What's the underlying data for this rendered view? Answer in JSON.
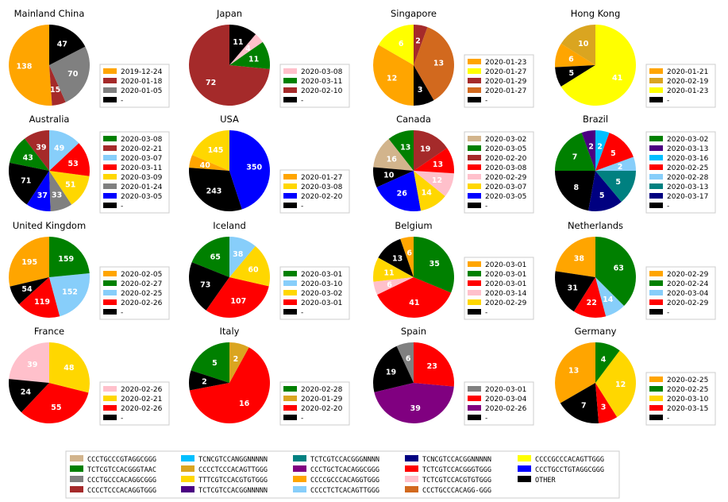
{
  "chart_data": [
    {
      "type": "pie",
      "title": "Mainland China",
      "slices": [
        {
          "value": 138,
          "color": "#FFA500",
          "legend": "2019-12-24"
        },
        {
          "value": 15,
          "color": "#A52A2A",
          "legend": "2020-01-18"
        },
        {
          "value": 70,
          "color": "#808080",
          "legend": "2020-01-05"
        },
        {
          "value": 47,
          "color": "#000000",
          "legend": "-"
        }
      ]
    },
    {
      "type": "pie",
      "title": "Japan",
      "slices": [
        {
          "value": 72,
          "color": "#A52A2A",
          "legend": "2020-02-10"
        },
        {
          "value": 11,
          "color": "#008000",
          "legend": "2020-03-11"
        },
        {
          "value": 4,
          "color": "#FFC0CB",
          "legend": "2020-03-08"
        },
        {
          "value": 11,
          "color": "#000000",
          "legend": "-"
        }
      ],
      "legend_order": [
        2,
        1,
        0,
        3
      ]
    },
    {
      "type": "pie",
      "title": "Singapore",
      "slices": [
        {
          "value": 6,
          "color": "#FFFF00",
          "legend": "2020-01-27"
        },
        {
          "value": 12,
          "color": "#FFA500",
          "legend": "2020-01-23"
        },
        {
          "value": 3,
          "color": "#000000",
          "legend": "-"
        },
        {
          "value": 13,
          "color": "#D2691E",
          "legend": "2020-01-27"
        },
        {
          "value": 2,
          "color": "#A52A2A",
          "legend": "2020-01-29"
        }
      ],
      "legend_order": [
        1,
        0,
        4,
        3,
        2
      ]
    },
    {
      "type": "pie",
      "title": "Hong Kong",
      "slices": [
        {
          "value": 10,
          "color": "#DAA520",
          "legend": "2020-02-19"
        },
        {
          "value": 6,
          "color": "#FFA500",
          "legend": "2020-01-21"
        },
        {
          "value": 5,
          "color": "#000000",
          "legend": "-"
        },
        {
          "value": 41,
          "color": "#FFFF00",
          "legend": "2020-01-23"
        }
      ],
      "legend_order": [
        1,
        0,
        3,
        2
      ]
    },
    {
      "type": "pie",
      "title": "Australia",
      "slices": [
        {
          "value": 39,
          "color": "#A52A2A",
          "legend": "2020-02-21"
        },
        {
          "value": 43,
          "color": "#008000",
          "legend": "2020-03-08"
        },
        {
          "value": 71,
          "color": "#000000",
          "legend": "-"
        },
        {
          "value": 37,
          "color": "#0000FF",
          "legend": "2020-03-05"
        },
        {
          "value": 33,
          "color": "#808080",
          "legend": "2020-01-24"
        },
        {
          "value": 51,
          "color": "#FFD700",
          "legend": "2020-03-09"
        },
        {
          "value": 53,
          "color": "#FF0000",
          "legend": "2020-03-11"
        },
        {
          "value": 49,
          "color": "#87CEFA",
          "legend": "2020-03-07"
        }
      ],
      "legend_order": [
        1,
        0,
        7,
        6,
        5,
        4,
        3,
        2
      ]
    },
    {
      "type": "pie",
      "title": "USA",
      "slices": [
        {
          "value": 145,
          "color": "#FFD700",
          "legend": "2020-03-08"
        },
        {
          "value": 40,
          "color": "#FFA500",
          "legend": "2020-01-27"
        },
        {
          "value": 243,
          "color": "#000000",
          "legend": "-"
        },
        {
          "value": 350,
          "color": "#0000FF",
          "legend": "2020-02-20"
        }
      ],
      "legend_order": [
        1,
        0,
        3,
        2
      ]
    },
    {
      "type": "pie",
      "title": "Canada",
      "slices": [
        {
          "value": 13,
          "color": "#008000",
          "legend": "2020-03-05"
        },
        {
          "value": 16,
          "color": "#D2B48C",
          "legend": "2020-03-02"
        },
        {
          "value": 10,
          "color": "#000000",
          "legend": "-"
        },
        {
          "value": 26,
          "color": "#0000FF",
          "legend": "2020-03-05"
        },
        {
          "value": 14,
          "color": "#FFD700",
          "legend": "2020-03-07"
        },
        {
          "value": 12,
          "color": "#FFC0CB",
          "legend": "2020-02-29"
        },
        {
          "value": 13,
          "color": "#FF0000",
          "legend": "2020-03-08"
        },
        {
          "value": 19,
          "color": "#A52A2A",
          "legend": "2020-02-20"
        }
      ],
      "legend_order": [
        1,
        0,
        7,
        6,
        5,
        4,
        3,
        2
      ]
    },
    {
      "type": "pie",
      "title": "Brazil",
      "slices": [
        {
          "value": 2,
          "color": "#4B0082",
          "legend": "2020-03-13"
        },
        {
          "value": 7,
          "color": "#008000",
          "legend": "2020-03-02"
        },
        {
          "value": 8,
          "color": "#000000",
          "legend": "-"
        },
        {
          "value": 5,
          "color": "#000080",
          "legend": "2020-03-17"
        },
        {
          "value": 5,
          "color": "#008080",
          "legend": "2020-03-13"
        },
        {
          "value": 2,
          "color": "#87CEFA",
          "legend": "2020-02-28"
        },
        {
          "value": 5,
          "color": "#FF0000",
          "legend": "2020-02-25"
        },
        {
          "value": 2,
          "color": "#00BFFF",
          "legend": "2020-03-16"
        }
      ],
      "legend_order": [
        1,
        0,
        7,
        6,
        5,
        4,
        3,
        2
      ]
    },
    {
      "type": "pie",
      "title": "United Kingdom",
      "slices": [
        {
          "value": 195,
          "color": "#FFA500",
          "legend": "2020-02-05"
        },
        {
          "value": 54,
          "color": "#000000",
          "legend": "-"
        },
        {
          "value": 119,
          "color": "#FF0000",
          "legend": "2020-02-26"
        },
        {
          "value": 152,
          "color": "#87CEFA",
          "legend": "2020-02-25"
        },
        {
          "value": 159,
          "color": "#008000",
          "legend": "2020-02-27"
        }
      ],
      "legend_order": [
        0,
        4,
        3,
        2,
        1
      ]
    },
    {
      "type": "pie",
      "title": "Iceland",
      "slices": [
        {
          "value": 65,
          "color": "#008000",
          "legend": "2020-03-01"
        },
        {
          "value": 73,
          "color": "#000000",
          "legend": "-"
        },
        {
          "value": 107,
          "color": "#FF0000",
          "legend": "2020-03-01"
        },
        {
          "value": 60,
          "color": "#FFD700",
          "legend": "2020-03-02"
        },
        {
          "value": 38,
          "color": "#87CEFA",
          "legend": "2020-03-10"
        }
      ],
      "legend_order": [
        0,
        4,
        3,
        2,
        1
      ]
    },
    {
      "type": "pie",
      "title": "Belgium",
      "slices": [
        {
          "value": 6,
          "color": "#FFA500",
          "legend": "2020-03-01"
        },
        {
          "value": 13,
          "color": "#000000",
          "legend": "-"
        },
        {
          "value": 11,
          "color": "#FFD700",
          "legend": "2020-02-29"
        },
        {
          "value": 6,
          "color": "#FFC0CB",
          "legend": "2020-03-14"
        },
        {
          "value": 41,
          "color": "#FF0000",
          "legend": "2020-03-01"
        },
        {
          "value": 35,
          "color": "#008000",
          "legend": "2020-03-01"
        }
      ],
      "legend_order": [
        0,
        5,
        4,
        3,
        2,
        1
      ]
    },
    {
      "type": "pie",
      "title": "Netherlands",
      "slices": [
        {
          "value": 38,
          "color": "#FFA500",
          "legend": "2020-02-29"
        },
        {
          "value": 31,
          "color": "#000000",
          "legend": "-"
        },
        {
          "value": 22,
          "color": "#FF0000",
          "legend": "2020-02-29"
        },
        {
          "value": 14,
          "color": "#87CEFA",
          "legend": "2020-03-04"
        },
        {
          "value": 63,
          "color": "#008000",
          "legend": "2020-02-24"
        }
      ],
      "legend_order": [
        0,
        4,
        3,
        2,
        1
      ]
    },
    {
      "type": "pie",
      "title": "France",
      "slices": [
        {
          "value": 39,
          "color": "#FFC0CB",
          "legend": "2020-02-26"
        },
        {
          "value": 24,
          "color": "#000000",
          "legend": "-"
        },
        {
          "value": 55,
          "color": "#FF0000",
          "legend": "2020-02-26"
        },
        {
          "value": 48,
          "color": "#FFD700",
          "legend": "2020-02-21"
        }
      ],
      "legend_order": [
        0,
        3,
        2,
        1
      ]
    },
    {
      "type": "pie",
      "title": "Italy",
      "slices": [
        {
          "value": 5,
          "color": "#008000",
          "legend": "2020-02-28"
        },
        {
          "value": 2,
          "color": "#000000",
          "legend": "-"
        },
        {
          "value": 16,
          "color": "#FF0000",
          "legend": "2020-02-20"
        },
        {
          "value": 2,
          "color": "#DAA520",
          "legend": "2020-01-29"
        }
      ],
      "legend_order": [
        0,
        3,
        2,
        1
      ]
    },
    {
      "type": "pie",
      "title": "Spain",
      "slices": [
        {
          "value": 6,
          "color": "#808080",
          "legend": "2020-03-01"
        },
        {
          "value": 19,
          "color": "#000000",
          "legend": "-"
        },
        {
          "value": 39,
          "color": "#800080",
          "legend": "2020-02-26"
        },
        {
          "value": 23,
          "color": "#FF0000",
          "legend": "2020-03-04"
        }
      ],
      "legend_order": [
        0,
        3,
        2,
        1
      ]
    },
    {
      "type": "pie",
      "title": "Germany",
      "slices": [
        {
          "value": 13,
          "color": "#FFA500",
          "legend": "2020-02-25"
        },
        {
          "value": 7,
          "color": "#000000",
          "legend": "-"
        },
        {
          "value": 3,
          "color": "#FF0000",
          "legend": "2020-03-15"
        },
        {
          "value": 12,
          "color": "#FFD700",
          "legend": "2020-03-10"
        },
        {
          "value": 4,
          "color": "#008000",
          "legend": "2020-02-25"
        }
      ],
      "legend_order": [
        0,
        4,
        3,
        2,
        1
      ]
    }
  ],
  "sequence_key": [
    [
      {
        "color": "#D2B48C",
        "label": "CCCTGCCCGTAGGCGGG"
      },
      {
        "color": "#008000",
        "label": "TCTCGTCCACGGGTAAC"
      },
      {
        "color": "#808080",
        "label": "CCCTGCCCACAGGCGGG"
      },
      {
        "color": "#A52A2A",
        "label": "CCCCTCCCACAGGTGGG"
      }
    ],
    [
      {
        "color": "#00BFFF",
        "label": "TCNCGTCCANGGNNNNN"
      },
      {
        "color": "#DAA520",
        "label": "CCCCTCCCACAGTTGGG"
      },
      {
        "color": "#FFD700",
        "label": "TTTCGTCCACGTGTGGG"
      },
      {
        "color": "#4B0082",
        "label": "TCTCGTCCACGGNNNNN"
      }
    ],
    [
      {
        "color": "#008080",
        "label": "TCTCGTCCACGGGNNNN"
      },
      {
        "color": "#800080",
        "label": "CCCTGCTCACAGGCGGG"
      },
      {
        "color": "#FFA500",
        "label": "CCCCGCCCACAGGTGGG"
      },
      {
        "color": "#87CEFA",
        "label": "CCCCTCTCACAGTTGGG"
      }
    ],
    [
      {
        "color": "#000080",
        "label": "TCNCGTCCACGGNNNNN"
      },
      {
        "color": "#FF0000",
        "label": "TCTCGTCCACGGGTGGG"
      },
      {
        "color": "#FFC0CB",
        "label": "TCTCGTCCACGTGTGGG"
      },
      {
        "color": "#D2691E",
        "label": "CCCTGCCCACAGG-GGG"
      }
    ],
    [
      {
        "color": "#FFFF00",
        "label": "CCCCGCCCACAGTTGGG"
      },
      {
        "color": "#0000FF",
        "label": "CCCTGCCTGTAGGCGGG"
      },
      {
        "color": "#000000",
        "label": "OTHER"
      }
    ]
  ]
}
